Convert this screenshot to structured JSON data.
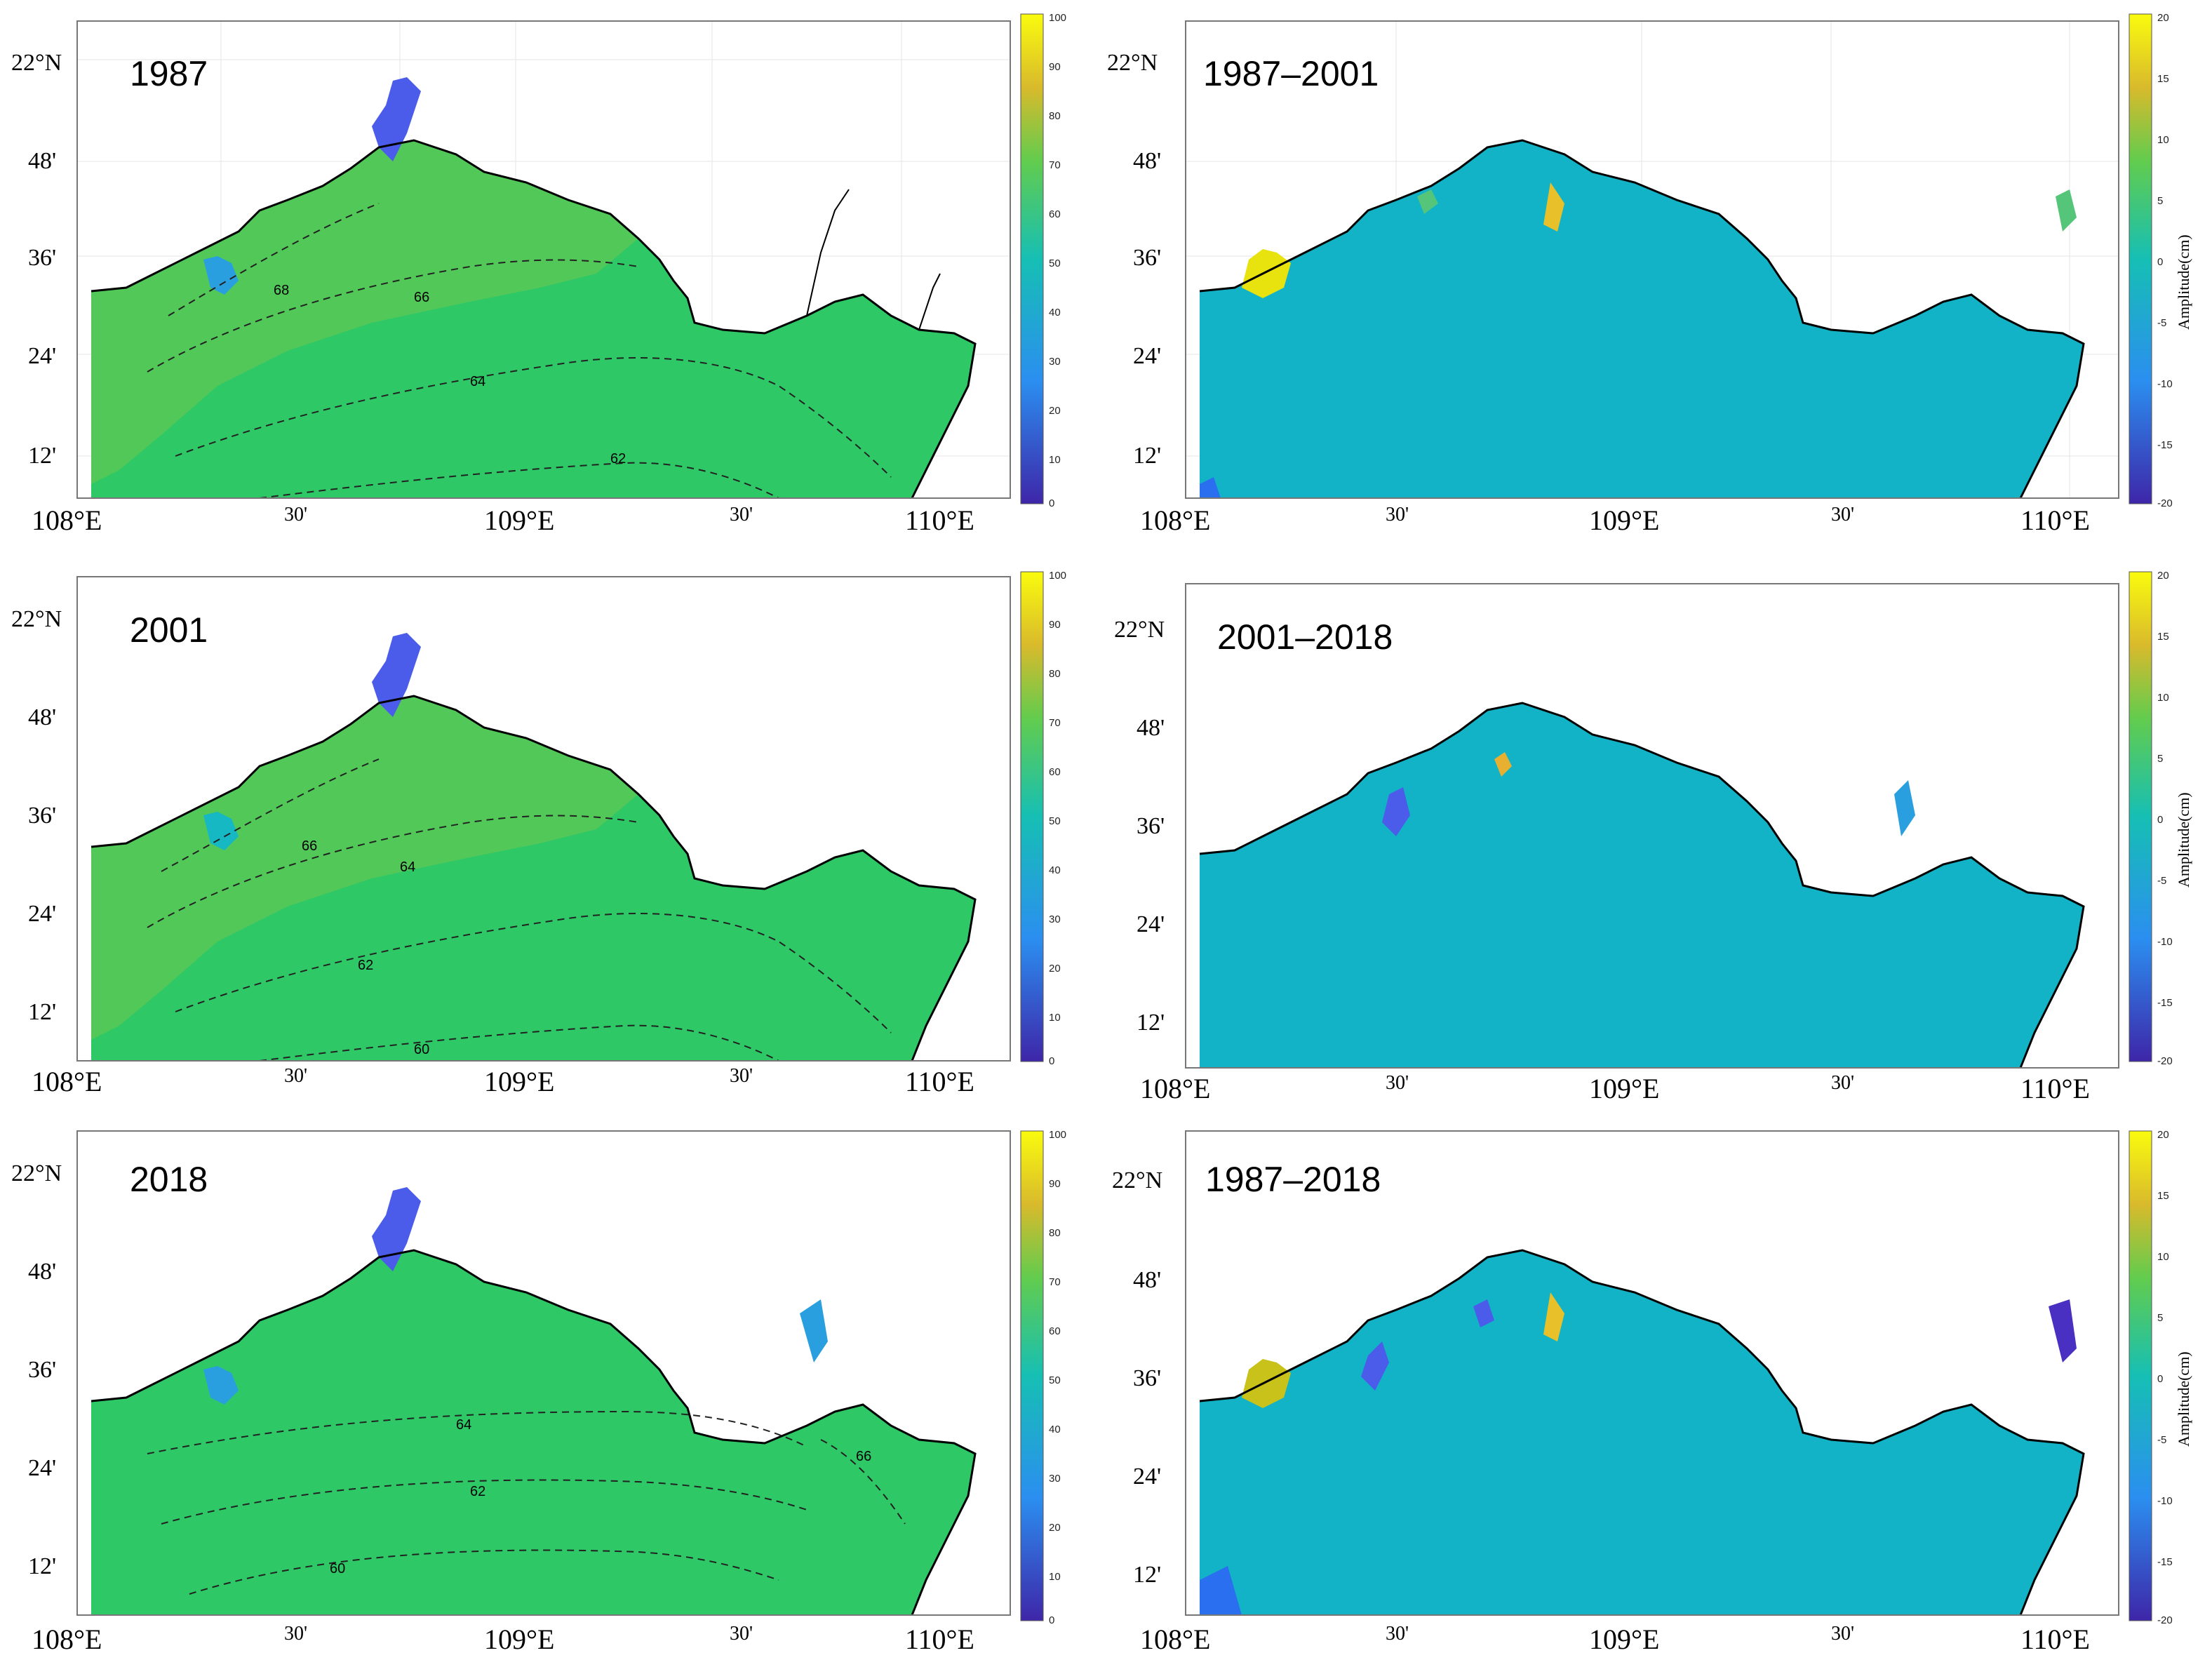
{
  "panels": [
    {
      "title": "1987",
      "type": "amplitude",
      "contours": [
        {
          "label": "68"
        },
        {
          "label": "66"
        },
        {
          "label": "64"
        },
        {
          "label": "62"
        }
      ]
    },
    {
      "title": "1987–2001",
      "type": "difference"
    },
    {
      "title": "2001",
      "type": "amplitude",
      "contours": [
        {
          "label": "66"
        },
        {
          "label": "64"
        },
        {
          "label": "62"
        },
        {
          "label": "60"
        }
      ]
    },
    {
      "title": "2001–2018",
      "type": "difference"
    },
    {
      "title": "2018",
      "type": "amplitude",
      "contours": [
        {
          "label": "64"
        },
        {
          "label": "62"
        },
        {
          "label": "60"
        },
        {
          "label": "66"
        }
      ]
    },
    {
      "title": "1987–2018",
      "type": "difference"
    }
  ],
  "axes": {
    "lat_labels": [
      "22°N",
      "48'",
      "36'",
      "24'",
      "12'"
    ],
    "lon_labels": [
      "108°E",
      "30'",
      "109°E",
      "30'",
      "110°E"
    ]
  },
  "colorbars": {
    "amplitude": {
      "ticks": [
        "100",
        "90",
        "80",
        "70",
        "60",
        "50",
        "40",
        "30",
        "20",
        "10",
        "0"
      ]
    },
    "difference": {
      "ticks": [
        "20",
        "15",
        "10",
        "5",
        "0",
        "-5",
        "-10",
        "-15",
        "-20"
      ],
      "label": "Amplitude(cm)"
    }
  },
  "colors": {
    "sea_amplitude": "#2ec866",
    "sea_amplitude_light": "#52c452",
    "sea_difference": "#13b3c7",
    "bay_blue": "#4b5bea",
    "bay_light_blue": "#2a9fe0",
    "hot": "#e8e20e",
    "dark_purple": "#4a2fc3"
  }
}
